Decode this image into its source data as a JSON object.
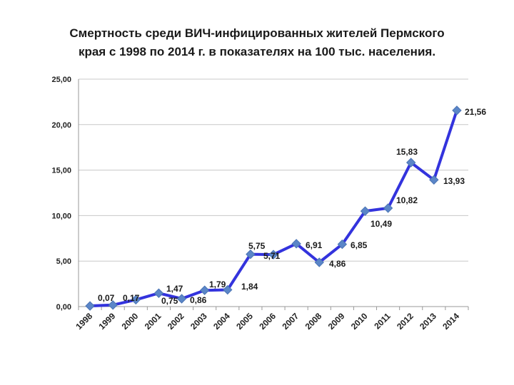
{
  "title": {
    "line1": "Смертность среди ВИЧ-инфицированных жителей  Пермского",
    "line2": "края с 1998 по  2014 г. в показателях на 100 тыс. населения."
  },
  "colors": {
    "line": "#3333dd",
    "marker": "#5b86c8",
    "grid": "#c8c8c8",
    "axis": "#999999"
  },
  "chart_data": {
    "type": "line",
    "title": "Смертность среди ВИЧ-инфицированных жителей  Пермского края с 1998 по  2014 г. в показателях на 100 тыс. населения.",
    "categories": [
      "1998",
      "1999",
      "2000",
      "2001",
      "2002",
      "2003",
      "2004",
      "2005",
      "2006",
      "2007",
      "2008",
      "2009",
      "2010",
      "2011",
      "2012",
      "2013",
      "2014"
    ],
    "series": [
      {
        "values": [
          0.07,
          0.17,
          0.75,
          1.47,
          0.86,
          1.79,
          1.84,
          5.75,
          5.71,
          6.91,
          4.86,
          6.85,
          10.49,
          10.82,
          15.83,
          13.93,
          21.56
        ]
      }
    ],
    "data_labels": [
      "0,07",
      "0,17",
      "0,75",
      "1,47",
      "0,86",
      "1,79",
      "1,84",
      "5,75",
      "5,71",
      "6,91",
      "4,86",
      "6,85",
      "10,49",
      "10,82",
      "15,83",
      "13,93",
      "21,56"
    ],
    "ylim": [
      0,
      25
    ],
    "y_ticks": [
      "0,00",
      "5,00",
      "10,00",
      "15,00",
      "20,00",
      "25,00"
    ],
    "y_tick_values": [
      0,
      5,
      10,
      15,
      20,
      25
    ],
    "grid": true,
    "legend": "none"
  }
}
